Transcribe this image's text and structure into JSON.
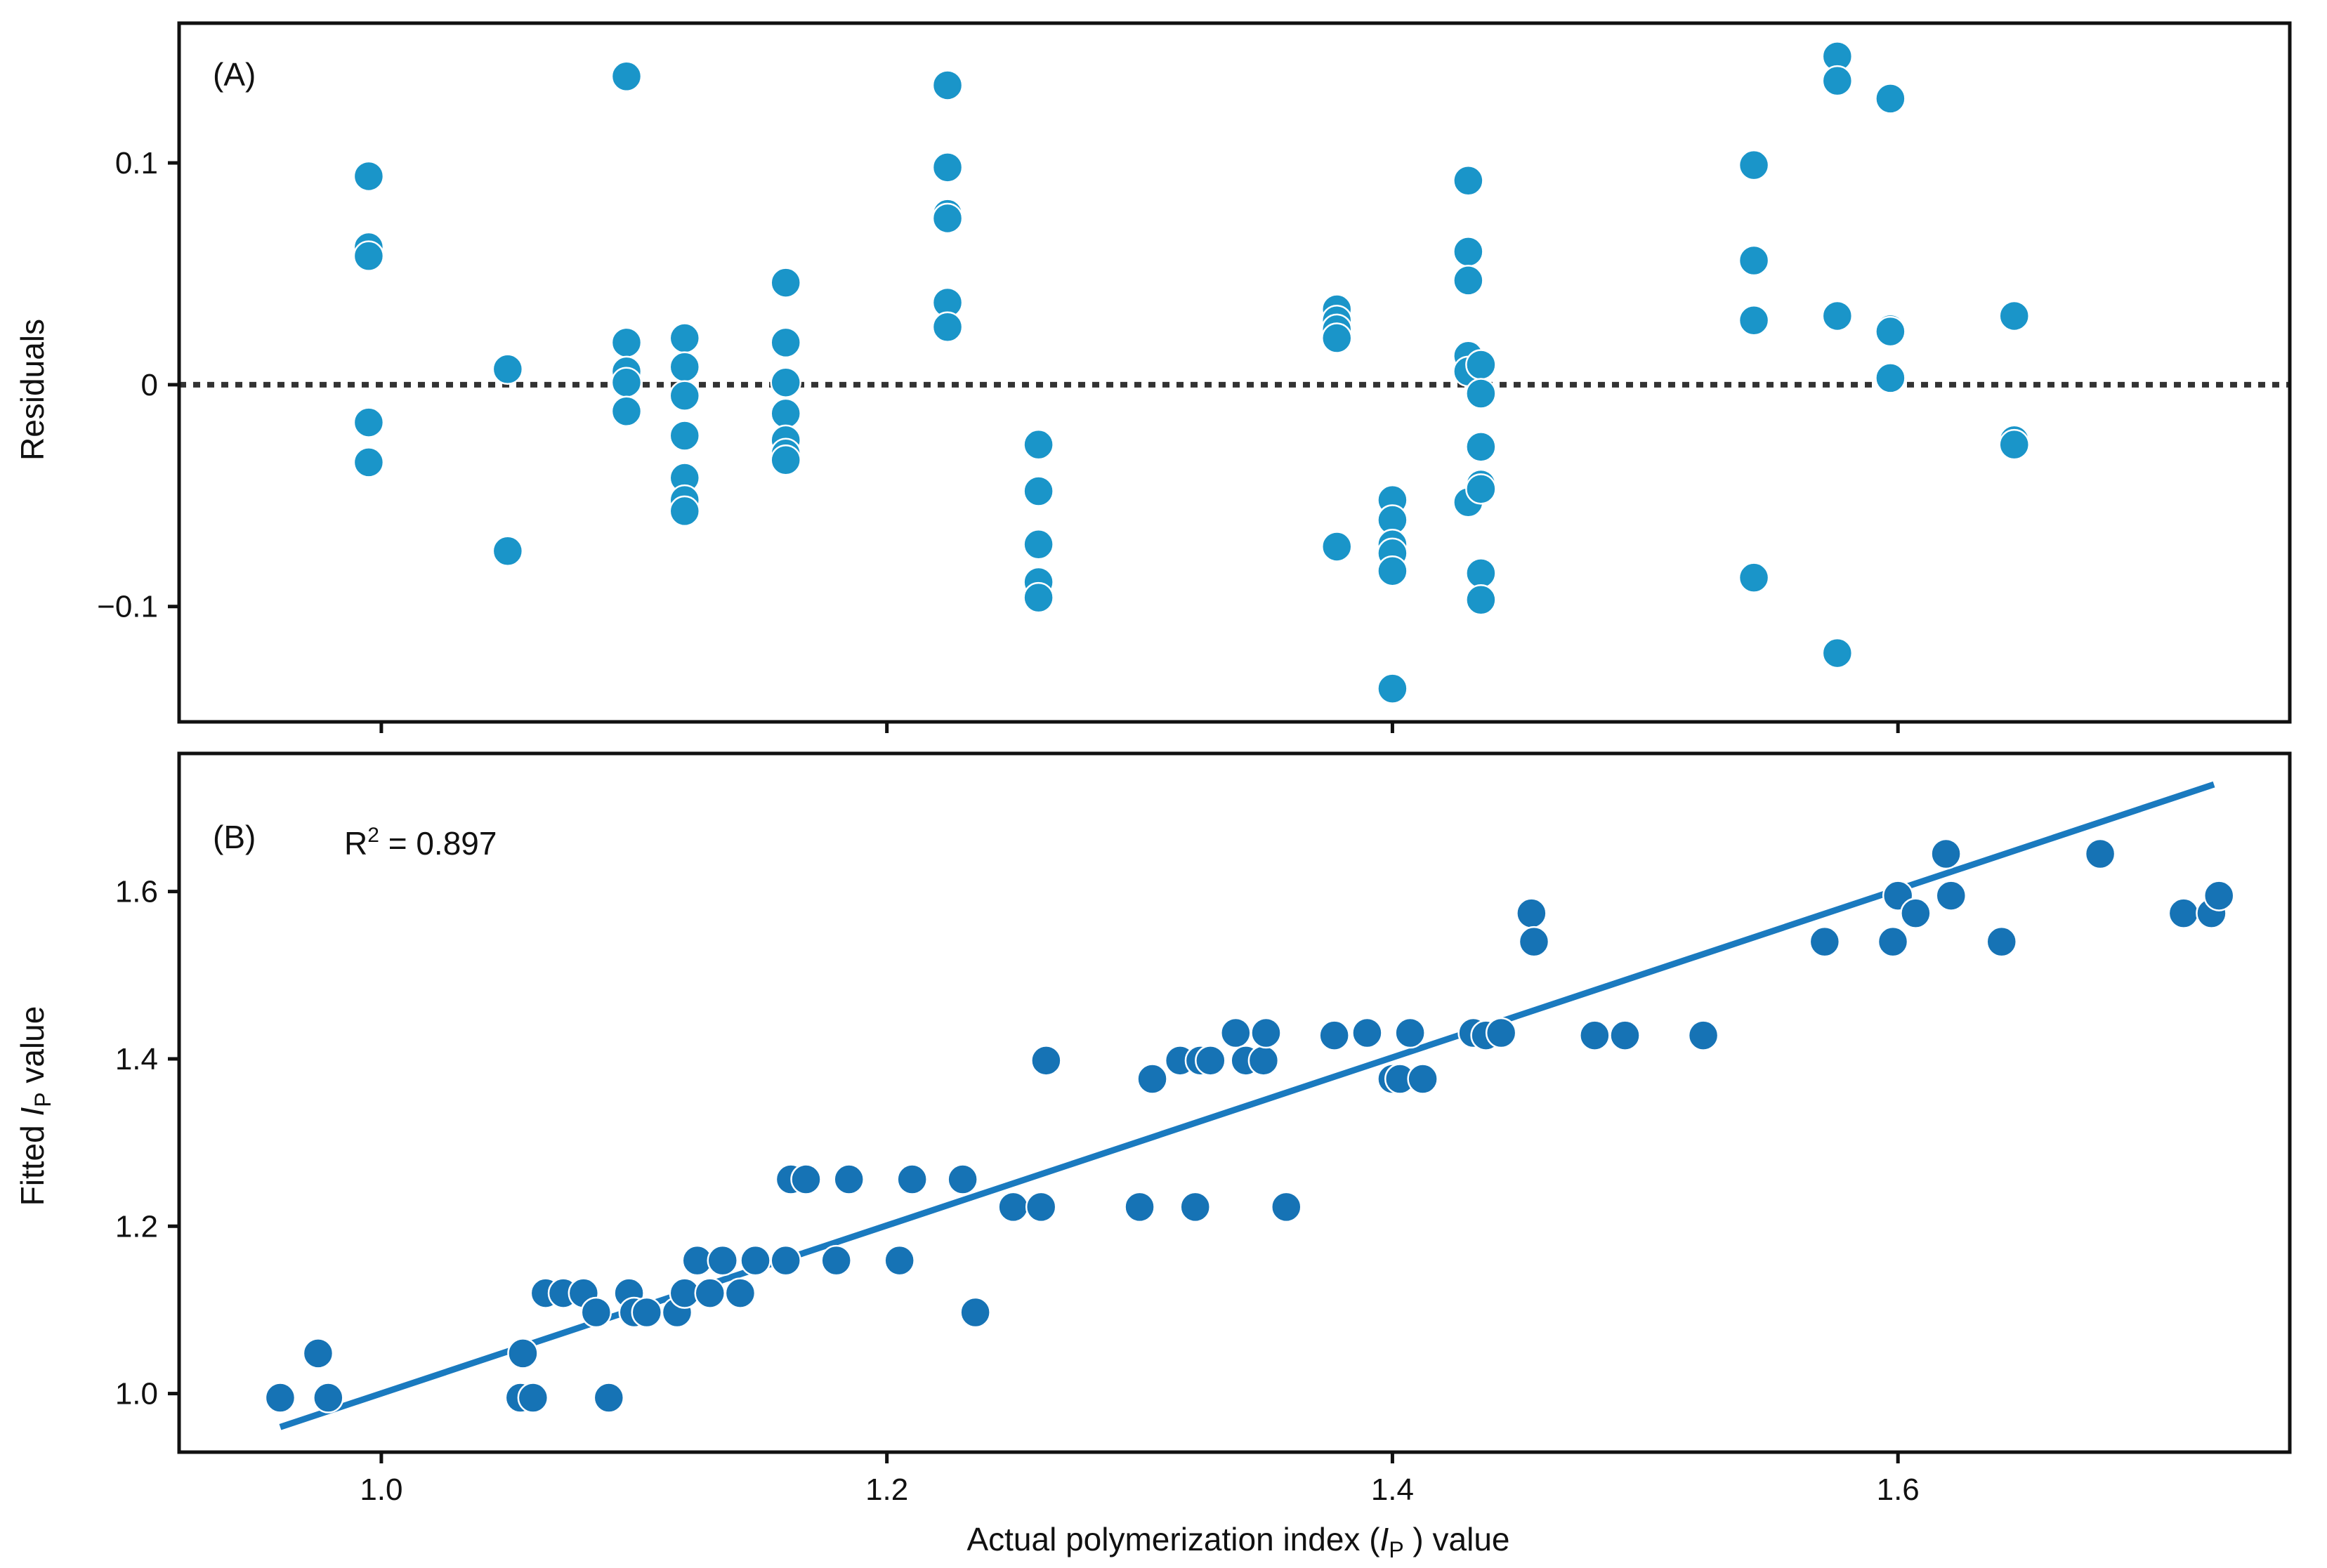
{
  "chart_data": [
    {
      "type": "scatter",
      "panel_label": "(A)",
      "ylabel": "Residuals",
      "xlim": [
        0.92,
        1.755
      ],
      "ylim": [
        -0.152,
        0.163
      ],
      "yticks": [
        -0.1,
        0,
        0.1
      ],
      "ytick_labels": [
        "−0.1",
        "0",
        "0.1"
      ],
      "xticks": [
        1.0,
        1.2,
        1.4,
        1.6
      ],
      "reference_line": {
        "y": 0,
        "style": "dotted"
      },
      "point_color": "#1a95c9",
      "points": [
        {
          "x": 0.995,
          "y": 0.094
        },
        {
          "x": 0.995,
          "y": 0.062
        },
        {
          "x": 0.995,
          "y": 0.058
        },
        {
          "x": 0.995,
          "y": -0.017
        },
        {
          "x": 0.995,
          "y": -0.035
        },
        {
          "x": 1.05,
          "y": 0.007
        },
        {
          "x": 1.05,
          "y": -0.075
        },
        {
          "x": 1.097,
          "y": 0.139
        },
        {
          "x": 1.097,
          "y": 0.019
        },
        {
          "x": 1.097,
          "y": 0.006
        },
        {
          "x": 1.097,
          "y": 0.001
        },
        {
          "x": 1.097,
          "y": -0.012
        },
        {
          "x": 1.12,
          "y": 0.021
        },
        {
          "x": 1.12,
          "y": 0.008
        },
        {
          "x": 1.12,
          "y": -0.005
        },
        {
          "x": 1.12,
          "y": -0.023
        },
        {
          "x": 1.12,
          "y": -0.042
        },
        {
          "x": 1.12,
          "y": -0.052
        },
        {
          "x": 1.12,
          "y": -0.057
        },
        {
          "x": 1.16,
          "y": 0.046
        },
        {
          "x": 1.16,
          "y": 0.019
        },
        {
          "x": 1.16,
          "y": 0.001
        },
        {
          "x": 1.16,
          "y": -0.013
        },
        {
          "x": 1.16,
          "y": -0.025
        },
        {
          "x": 1.16,
          "y": -0.031
        },
        {
          "x": 1.16,
          "y": -0.034
        },
        {
          "x": 1.224,
          "y": 0.135
        },
        {
          "x": 1.224,
          "y": 0.098
        },
        {
          "x": 1.224,
          "y": 0.077
        },
        {
          "x": 1.224,
          "y": 0.075
        },
        {
          "x": 1.224,
          "y": 0.037
        },
        {
          "x": 1.224,
          "y": 0.026
        },
        {
          "x": 1.26,
          "y": -0.027
        },
        {
          "x": 1.26,
          "y": -0.048
        },
        {
          "x": 1.26,
          "y": -0.072
        },
        {
          "x": 1.26,
          "y": -0.089
        },
        {
          "x": 1.26,
          "y": -0.096
        },
        {
          "x": 1.378,
          "y": 0.034
        },
        {
          "x": 1.378,
          "y": 0.029
        },
        {
          "x": 1.378,
          "y": 0.025
        },
        {
          "x": 1.378,
          "y": 0.021
        },
        {
          "x": 1.378,
          "y": -0.073
        },
        {
          "x": 1.4,
          "y": -0.052
        },
        {
          "x": 1.4,
          "y": -0.061
        },
        {
          "x": 1.4,
          "y": -0.072
        },
        {
          "x": 1.4,
          "y": -0.076
        },
        {
          "x": 1.4,
          "y": -0.084
        },
        {
          "x": 1.4,
          "y": -0.137
        },
        {
          "x": 1.43,
          "y": 0.092
        },
        {
          "x": 1.43,
          "y": 0.06
        },
        {
          "x": 1.43,
          "y": 0.047
        },
        {
          "x": 1.43,
          "y": 0.013
        },
        {
          "x": 1.43,
          "y": 0.006
        },
        {
          "x": 1.43,
          "y": -0.053
        },
        {
          "x": 1.435,
          "y": 0.009
        },
        {
          "x": 1.435,
          "y": -0.004
        },
        {
          "x": 1.435,
          "y": -0.028
        },
        {
          "x": 1.435,
          "y": -0.045
        },
        {
          "x": 1.435,
          "y": -0.047
        },
        {
          "x": 1.435,
          "y": -0.085
        },
        {
          "x": 1.435,
          "y": -0.097
        },
        {
          "x": 1.543,
          "y": 0.099
        },
        {
          "x": 1.543,
          "y": 0.056
        },
        {
          "x": 1.543,
          "y": 0.029
        },
        {
          "x": 1.543,
          "y": -0.087
        },
        {
          "x": 1.576,
          "y": 0.148
        },
        {
          "x": 1.576,
          "y": 0.137
        },
        {
          "x": 1.576,
          "y": 0.031
        },
        {
          "x": 1.576,
          "y": -0.121
        },
        {
          "x": 1.597,
          "y": 0.129
        },
        {
          "x": 1.597,
          "y": 0.025
        },
        {
          "x": 1.597,
          "y": 0.024
        },
        {
          "x": 1.597,
          "y": 0.003
        },
        {
          "x": 1.646,
          "y": 0.031
        },
        {
          "x": 1.646,
          "y": -0.025
        },
        {
          "x": 1.646,
          "y": -0.027
        }
      ]
    },
    {
      "type": "scatter",
      "panel_label": "(B)",
      "annotation": "R² = 0.897",
      "annotation_base": "R",
      "annotation_sup": "2",
      "annotation_rest": " = 0.897",
      "ylabel_pre": "Fitted ",
      "ylabel_italic": "I",
      "ylabel_sub": "P",
      "ylabel_post": " value",
      "xlabel_pre": "Actual polymerization index (",
      "xlabel_italic": "I",
      "xlabel_sub": "P",
      "xlabel_post": " ) value",
      "xlim": [
        0.92,
        1.755
      ],
      "ylim": [
        0.93,
        1.765
      ],
      "yticks": [
        1.0,
        1.2,
        1.4,
        1.6
      ],
      "ytick_labels": [
        "1.0",
        "1.2",
        "1.4",
        "1.6"
      ],
      "xticks": [
        1.0,
        1.2,
        1.4,
        1.6
      ],
      "xtick_labels": [
        "1.0",
        "1.2",
        "1.4",
        "1.6"
      ],
      "fit_line": {
        "x": [
          0.96,
          1.725
        ],
        "y": [
          0.96,
          1.728
        ]
      },
      "point_color": "#1673b5",
      "line_color": "#1a7abf",
      "points": [
        {
          "x": 0.96,
          "y": 0.995
        },
        {
          "x": 0.975,
          "y": 1.048
        },
        {
          "x": 0.979,
          "y": 0.995
        },
        {
          "x": 1.055,
          "y": 0.995
        },
        {
          "x": 1.056,
          "y": 1.048
        },
        {
          "x": 1.06,
          "y": 0.995
        },
        {
          "x": 1.065,
          "y": 1.12
        },
        {
          "x": 1.072,
          "y": 1.12
        },
        {
          "x": 1.08,
          "y": 1.12
        },
        {
          "x": 1.085,
          "y": 1.097
        },
        {
          "x": 1.09,
          "y": 0.995
        },
        {
          "x": 1.098,
          "y": 1.12
        },
        {
          "x": 1.1,
          "y": 1.097
        },
        {
          "x": 1.105,
          "y": 1.097
        },
        {
          "x": 1.117,
          "y": 1.097
        },
        {
          "x": 1.12,
          "y": 1.12
        },
        {
          "x": 1.125,
          "y": 1.159
        },
        {
          "x": 1.13,
          "y": 1.12
        },
        {
          "x": 1.135,
          "y": 1.159
        },
        {
          "x": 1.142,
          "y": 1.12
        },
        {
          "x": 1.148,
          "y": 1.159
        },
        {
          "x": 1.16,
          "y": 1.159
        },
        {
          "x": 1.162,
          "y": 1.256
        },
        {
          "x": 1.168,
          "y": 1.256
        },
        {
          "x": 1.18,
          "y": 1.159
        },
        {
          "x": 1.185,
          "y": 1.256
        },
        {
          "x": 1.205,
          "y": 1.159
        },
        {
          "x": 1.21,
          "y": 1.256
        },
        {
          "x": 1.23,
          "y": 1.256
        },
        {
          "x": 1.235,
          "y": 1.097
        },
        {
          "x": 1.25,
          "y": 1.223
        },
        {
          "x": 1.261,
          "y": 1.223
        },
        {
          "x": 1.263,
          "y": 1.398
        },
        {
          "x": 1.3,
          "y": 1.223
        },
        {
          "x": 1.305,
          "y": 1.376
        },
        {
          "x": 1.316,
          "y": 1.398
        },
        {
          "x": 1.322,
          "y": 1.223
        },
        {
          "x": 1.324,
          "y": 1.398
        },
        {
          "x": 1.328,
          "y": 1.398
        },
        {
          "x": 1.338,
          "y": 1.431
        },
        {
          "x": 1.342,
          "y": 1.398
        },
        {
          "x": 1.349,
          "y": 1.398
        },
        {
          "x": 1.35,
          "y": 1.431
        },
        {
          "x": 1.358,
          "y": 1.223
        },
        {
          "x": 1.377,
          "y": 1.428
        },
        {
          "x": 1.39,
          "y": 1.431
        },
        {
          "x": 1.4,
          "y": 1.376
        },
        {
          "x": 1.403,
          "y": 1.376
        },
        {
          "x": 1.407,
          "y": 1.431
        },
        {
          "x": 1.412,
          "y": 1.376
        },
        {
          "x": 1.432,
          "y": 1.431
        },
        {
          "x": 1.437,
          "y": 1.428
        },
        {
          "x": 1.443,
          "y": 1.431
        },
        {
          "x": 1.455,
          "y": 1.574
        },
        {
          "x": 1.456,
          "y": 1.54
        },
        {
          "x": 1.48,
          "y": 1.428
        },
        {
          "x": 1.492,
          "y": 1.428
        },
        {
          "x": 1.523,
          "y": 1.428
        },
        {
          "x": 1.571,
          "y": 1.54
        },
        {
          "x": 1.598,
          "y": 1.54
        },
        {
          "x": 1.6,
          "y": 1.595
        },
        {
          "x": 1.607,
          "y": 1.574
        },
        {
          "x": 1.619,
          "y": 1.645
        },
        {
          "x": 1.621,
          "y": 1.595
        },
        {
          "x": 1.641,
          "y": 1.54
        },
        {
          "x": 1.68,
          "y": 1.645
        },
        {
          "x": 1.713,
          "y": 1.574
        },
        {
          "x": 1.724,
          "y": 1.574
        },
        {
          "x": 1.727,
          "y": 1.595
        }
      ]
    }
  ]
}
